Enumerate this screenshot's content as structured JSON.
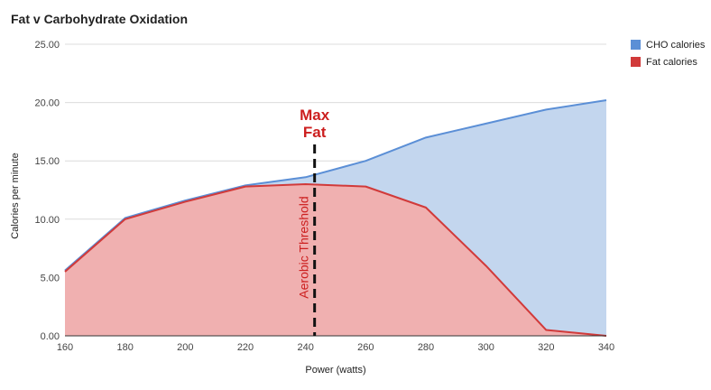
{
  "chart_data": {
    "type": "area",
    "title": "Fat v Carbohydrate Oxidation",
    "xlabel": "Power (watts)",
    "ylabel": "Calories per minute",
    "x": [
      160,
      180,
      200,
      220,
      240,
      260,
      280,
      300,
      320,
      340
    ],
    "x_ticks": [
      "160",
      "180",
      "200",
      "220",
      "240",
      "260",
      "280",
      "300",
      "320",
      "340"
    ],
    "y_ticks": [
      "0.00",
      "5.00",
      "10.00",
      "15.00",
      "20.00",
      "25.00"
    ],
    "xlim": [
      160,
      340
    ],
    "ylim": [
      0,
      25
    ],
    "grid": true,
    "legend_position": "top-right",
    "series": [
      {
        "name": "CHO calories",
        "color": "#5b8fd6",
        "fill": "#c3d6ee",
        "values": [
          5.6,
          10.1,
          11.6,
          12.9,
          13.6,
          15.0,
          17.0,
          18.2,
          19.4,
          20.2
        ]
      },
      {
        "name": "Fat calories",
        "color": "#d13a3a",
        "fill": "#f0b0b0",
        "values": [
          5.5,
          10.0,
          11.5,
          12.8,
          13.0,
          12.8,
          11.0,
          6.0,
          0.5,
          0.0
        ]
      }
    ],
    "annotations": {
      "max_fat_line1": "Max",
      "max_fat_line2": "Fat",
      "threshold_label": "Aerobic Threshold",
      "threshold_x": 243,
      "color": "#cc1f1f"
    }
  }
}
